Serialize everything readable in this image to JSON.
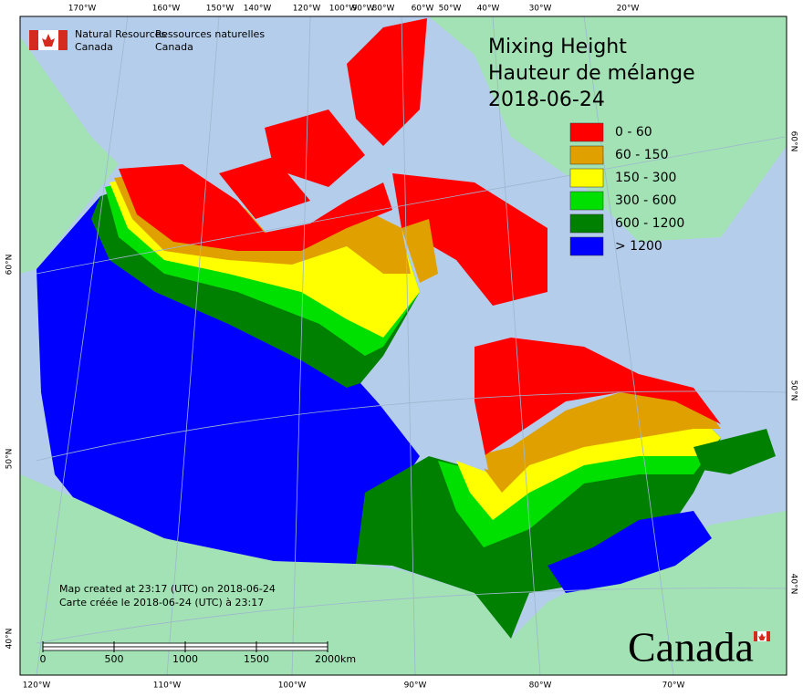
{
  "header": {
    "agency_en": [
      "Natural Resources",
      "Canada"
    ],
    "agency_fr": [
      "Ressources naturelles",
      "Canada"
    ]
  },
  "title": [
    "Mixing Height",
    "Hauteur de mélange",
    "2018-06-24"
  ],
  "legend": {
    "items": [
      {
        "label": "0 - 60",
        "color": "#ff0000"
      },
      {
        "label": "60 - 150",
        "color": "#e0a000"
      },
      {
        "label": "150 - 300",
        "color": "#ffff00"
      },
      {
        "label": "300 - 600",
        "color": "#00e000"
      },
      {
        "label": "600 - 1200",
        "color": "#008000"
      },
      {
        "label": "> 1200",
        "color": "#0000ff"
      }
    ]
  },
  "graticule": {
    "top": [
      "170°W",
      "160°W",
      "150°W",
      "140°W",
      "120°W",
      "100°W",
      "90°W",
      "80°W",
      "60°W",
      "50°W",
      "40°W",
      "30°W",
      "20°W"
    ],
    "bottom": [
      "120°W",
      "110°W",
      "100°W",
      "90°W",
      "80°W",
      "70°W"
    ],
    "left": [
      "60°N",
      "50°N",
      "40°N"
    ],
    "right": [
      "60°N",
      "50°N",
      "40°N"
    ]
  },
  "note": [
    "Map created at 23:17 (UTC) on 2018-06-24",
    "Carte créée le 2018-06-24 (UTC) à 23:17"
  ],
  "scale_bar": {
    "ticks": [
      0,
      500,
      1000,
      1500,
      2000
    ],
    "unit": "km"
  },
  "wordmark": "Canada"
}
